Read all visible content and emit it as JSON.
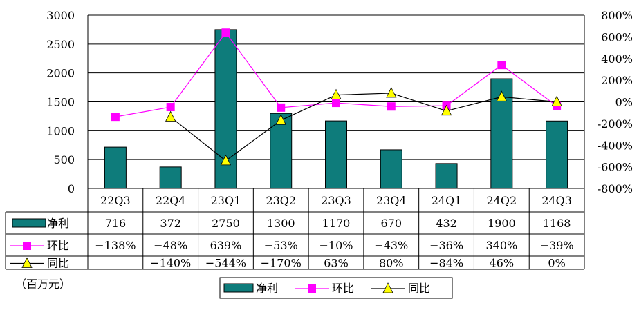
{
  "chart_data": {
    "type": "bar",
    "categories": [
      "22Q3",
      "22Q4",
      "23Q1",
      "23Q2",
      "23Q3",
      "23Q4",
      "24Q1",
      "24Q2",
      "24Q3"
    ],
    "unit_label": "（百万元）",
    "y_left": {
      "min": 0,
      "max": 3000,
      "step": 500,
      "tick_labels": [
        "0",
        "500",
        "1000",
        "1500",
        "2000",
        "2500",
        "3000"
      ]
    },
    "y_right": {
      "min": -800,
      "max": 800,
      "step": 200,
      "tick_labels": [
        "-800%",
        "-600%",
        "-400%",
        "-200%",
        "0%",
        "200%",
        "400%",
        "600%",
        "800%"
      ]
    },
    "grid": true,
    "legend_position": "bottom",
    "series": [
      {
        "name": "净利",
        "kind": "bar",
        "axis": "left",
        "color": "#0e7c7b",
        "values": [
          716,
          372,
          2750,
          1300,
          1170,
          670,
          432,
          1900,
          1168
        ],
        "labels": [
          "716",
          "372",
          "2750",
          "1300",
          "1170",
          "670",
          "432",
          "1900",
          "1168"
        ]
      },
      {
        "name": "环比",
        "kind": "line",
        "axis": "right",
        "color": "#ff00ff",
        "marker": "square",
        "values": [
          -138,
          -48,
          639,
          -53,
          -10,
          -43,
          -36,
          340,
          -39
        ],
        "labels": [
          "−138%",
          "−48%",
          "639%",
          "−53%",
          "−10%",
          "−43%",
          "−36%",
          "340%",
          "−39%"
        ]
      },
      {
        "name": "同比",
        "kind": "line",
        "axis": "right",
        "color": "#000000",
        "marker": "triangle",
        "marker_fill": "#ffff00",
        "values": [
          null,
          -140,
          -544,
          -170,
          63,
          80,
          -84,
          46,
          0
        ],
        "labels": [
          "",
          "−140%",
          "−544%",
          "−170%",
          "63%",
          "80%",
          "−84%",
          "46%",
          "0%"
        ]
      }
    ]
  }
}
